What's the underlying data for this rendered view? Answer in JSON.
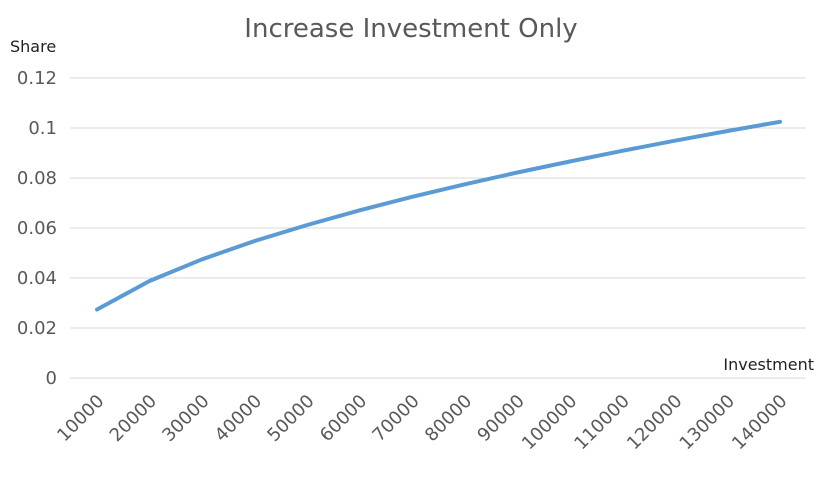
{
  "chart_data": {
    "type": "line",
    "title": "Increase Investment Only",
    "ylabel": "Share",
    "xlabel": "Investment",
    "categories": [
      "10000",
      "20000",
      "30000",
      "40000",
      "50000",
      "60000",
      "70000",
      "80000",
      "90000",
      "100000",
      "110000",
      "120000",
      "130000",
      "140000"
    ],
    "series": [
      {
        "values": [
          0.0274,
          0.0388,
          0.0475,
          0.0548,
          0.0612,
          0.0671,
          0.0725,
          0.0775,
          0.0822,
          0.0866,
          0.0909,
          0.0949,
          0.0988,
          0.1025
        ],
        "color": "#5b9bd5"
      }
    ],
    "yticks": [
      "0",
      "0.02",
      "0.04",
      "0.06",
      "0.08",
      "0.1",
      "0.12"
    ],
    "ylim": [
      0,
      0.12
    ],
    "grid": true,
    "legend": "none",
    "colors": {
      "gridline": "#d9d9d9",
      "text": "#595959"
    }
  }
}
